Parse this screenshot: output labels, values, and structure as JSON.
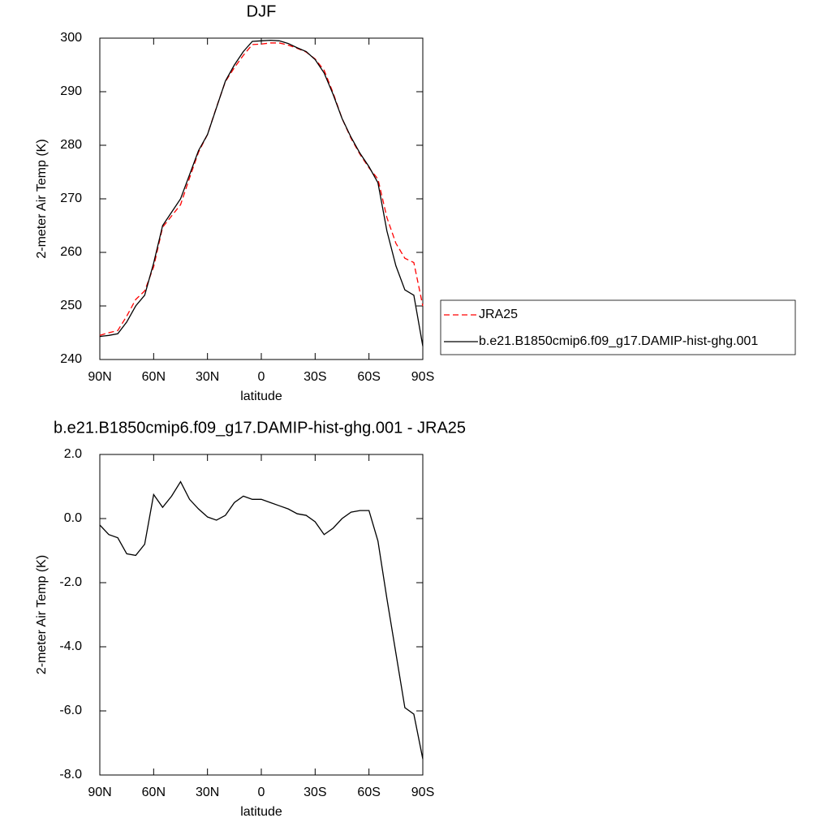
{
  "chart_data": [
    {
      "type": "line",
      "title": "DJF",
      "xlabel": "latitude",
      "ylabel": "2-meter Air Temp (K)",
      "x": [
        90,
        85,
        80,
        75,
        70,
        65,
        60,
        55,
        50,
        45,
        40,
        35,
        30,
        25,
        20,
        15,
        10,
        5,
        0,
        -5,
        -10,
        -15,
        -20,
        -25,
        -30,
        -35,
        -40,
        -45,
        -50,
        -55,
        -60,
        -65,
        -70,
        -75,
        -80,
        -85,
        -90
      ],
      "series": [
        {
          "name": "JRA25",
          "color": "#ff0000",
          "linestyle": "dashed",
          "values": [
            244.5,
            245.0,
            245.4,
            248.1,
            251.2,
            252.8,
            257.3,
            264.7,
            266.8,
            268.9,
            273.9,
            278.7,
            282.0,
            287.1,
            291.9,
            294.5,
            296.8,
            298.8,
            298.9,
            299.1,
            299.1,
            298.7,
            298.1,
            297.4,
            296.1,
            294.0,
            289.8,
            285.0,
            281.3,
            278.3,
            275.8,
            273.7,
            266.5,
            261.7,
            258.9,
            258.1,
            250.0
          ]
        },
        {
          "name": "b.e21.B1850cmip6.f09_g17.DAMIP-hist-ghg.001",
          "color": "#000000",
          "linestyle": "solid",
          "values": [
            244.3,
            244.5,
            244.8,
            247.0,
            250.0,
            252.0,
            258.0,
            265.0,
            267.5,
            270.0,
            274.5,
            279.0,
            282.0,
            287.0,
            292.0,
            295.0,
            297.5,
            299.4,
            299.5,
            299.6,
            299.5,
            299.0,
            298.2,
            297.5,
            296.0,
            293.5,
            289.5,
            285.0,
            281.5,
            278.5,
            276.0,
            273.0,
            264.0,
            257.5,
            253.0,
            252.0,
            242.5
          ]
        }
      ],
      "xlim": [
        90,
        -90
      ],
      "xticks": [
        {
          "value": 90,
          "label": "90N"
        },
        {
          "value": 60,
          "label": "60N"
        },
        {
          "value": 30,
          "label": "30N"
        },
        0,
        {
          "value": -30,
          "label": "30S"
        },
        {
          "value": -60,
          "label": "60S"
        },
        {
          "value": -90,
          "label": "90S"
        }
      ],
      "ylim": [
        240,
        300
      ],
      "yticks": [
        240,
        250,
        260,
        270,
        280,
        290,
        300
      ],
      "legend": "right"
    },
    {
      "type": "line",
      "title": "b.e21.B1850cmip6.f09_g17.DAMIP-hist-ghg.001 - JRA25",
      "xlabel": "latitude",
      "ylabel": "2-meter Air Temp (K)",
      "x": [
        90,
        85,
        80,
        75,
        70,
        65,
        60,
        55,
        50,
        45,
        40,
        35,
        30,
        25,
        20,
        15,
        10,
        5,
        0,
        -5,
        -10,
        -15,
        -20,
        -25,
        -30,
        -35,
        -40,
        -45,
        -50,
        -55,
        -60,
        -65,
        -70,
        -75,
        -80,
        -85,
        -90
      ],
      "series": [
        {
          "color": "#000000",
          "linestyle": "solid",
          "values": [
            -0.2,
            -0.5,
            -0.6,
            -1.1,
            -1.15,
            -0.8,
            0.75,
            0.35,
            0.7,
            1.15,
            0.6,
            0.3,
            0.05,
            -0.05,
            0.1,
            0.5,
            0.7,
            0.6,
            0.6,
            0.5,
            0.4,
            0.3,
            0.15,
            0.1,
            -0.1,
            -0.5,
            -0.3,
            0.0,
            0.2,
            0.25,
            0.25,
            -0.7,
            -2.5,
            -4.2,
            -5.9,
            -6.1,
            -7.5
          ]
        }
      ],
      "xlim": [
        90,
        -90
      ],
      "xticks": [
        {
          "value": 90,
          "label": "90N"
        },
        {
          "value": 60,
          "label": "60N"
        },
        {
          "value": 30,
          "label": "30N"
        },
        0,
        {
          "value": -30,
          "label": "30S"
        },
        {
          "value": -60,
          "label": "60S"
        },
        {
          "value": -90,
          "label": "90S"
        }
      ],
      "ylim": [
        -8,
        2
      ],
      "yticks": [
        {
          "value": -8,
          "label": "-8.0"
        },
        {
          "value": -6,
          "label": "-6.0"
        },
        {
          "value": -4,
          "label": "-4.0"
        },
        {
          "value": -2,
          "label": "-2.0"
        },
        {
          "value": 0,
          "label": "0.0"
        },
        {
          "value": 2,
          "label": "2.0"
        }
      ]
    }
  ]
}
